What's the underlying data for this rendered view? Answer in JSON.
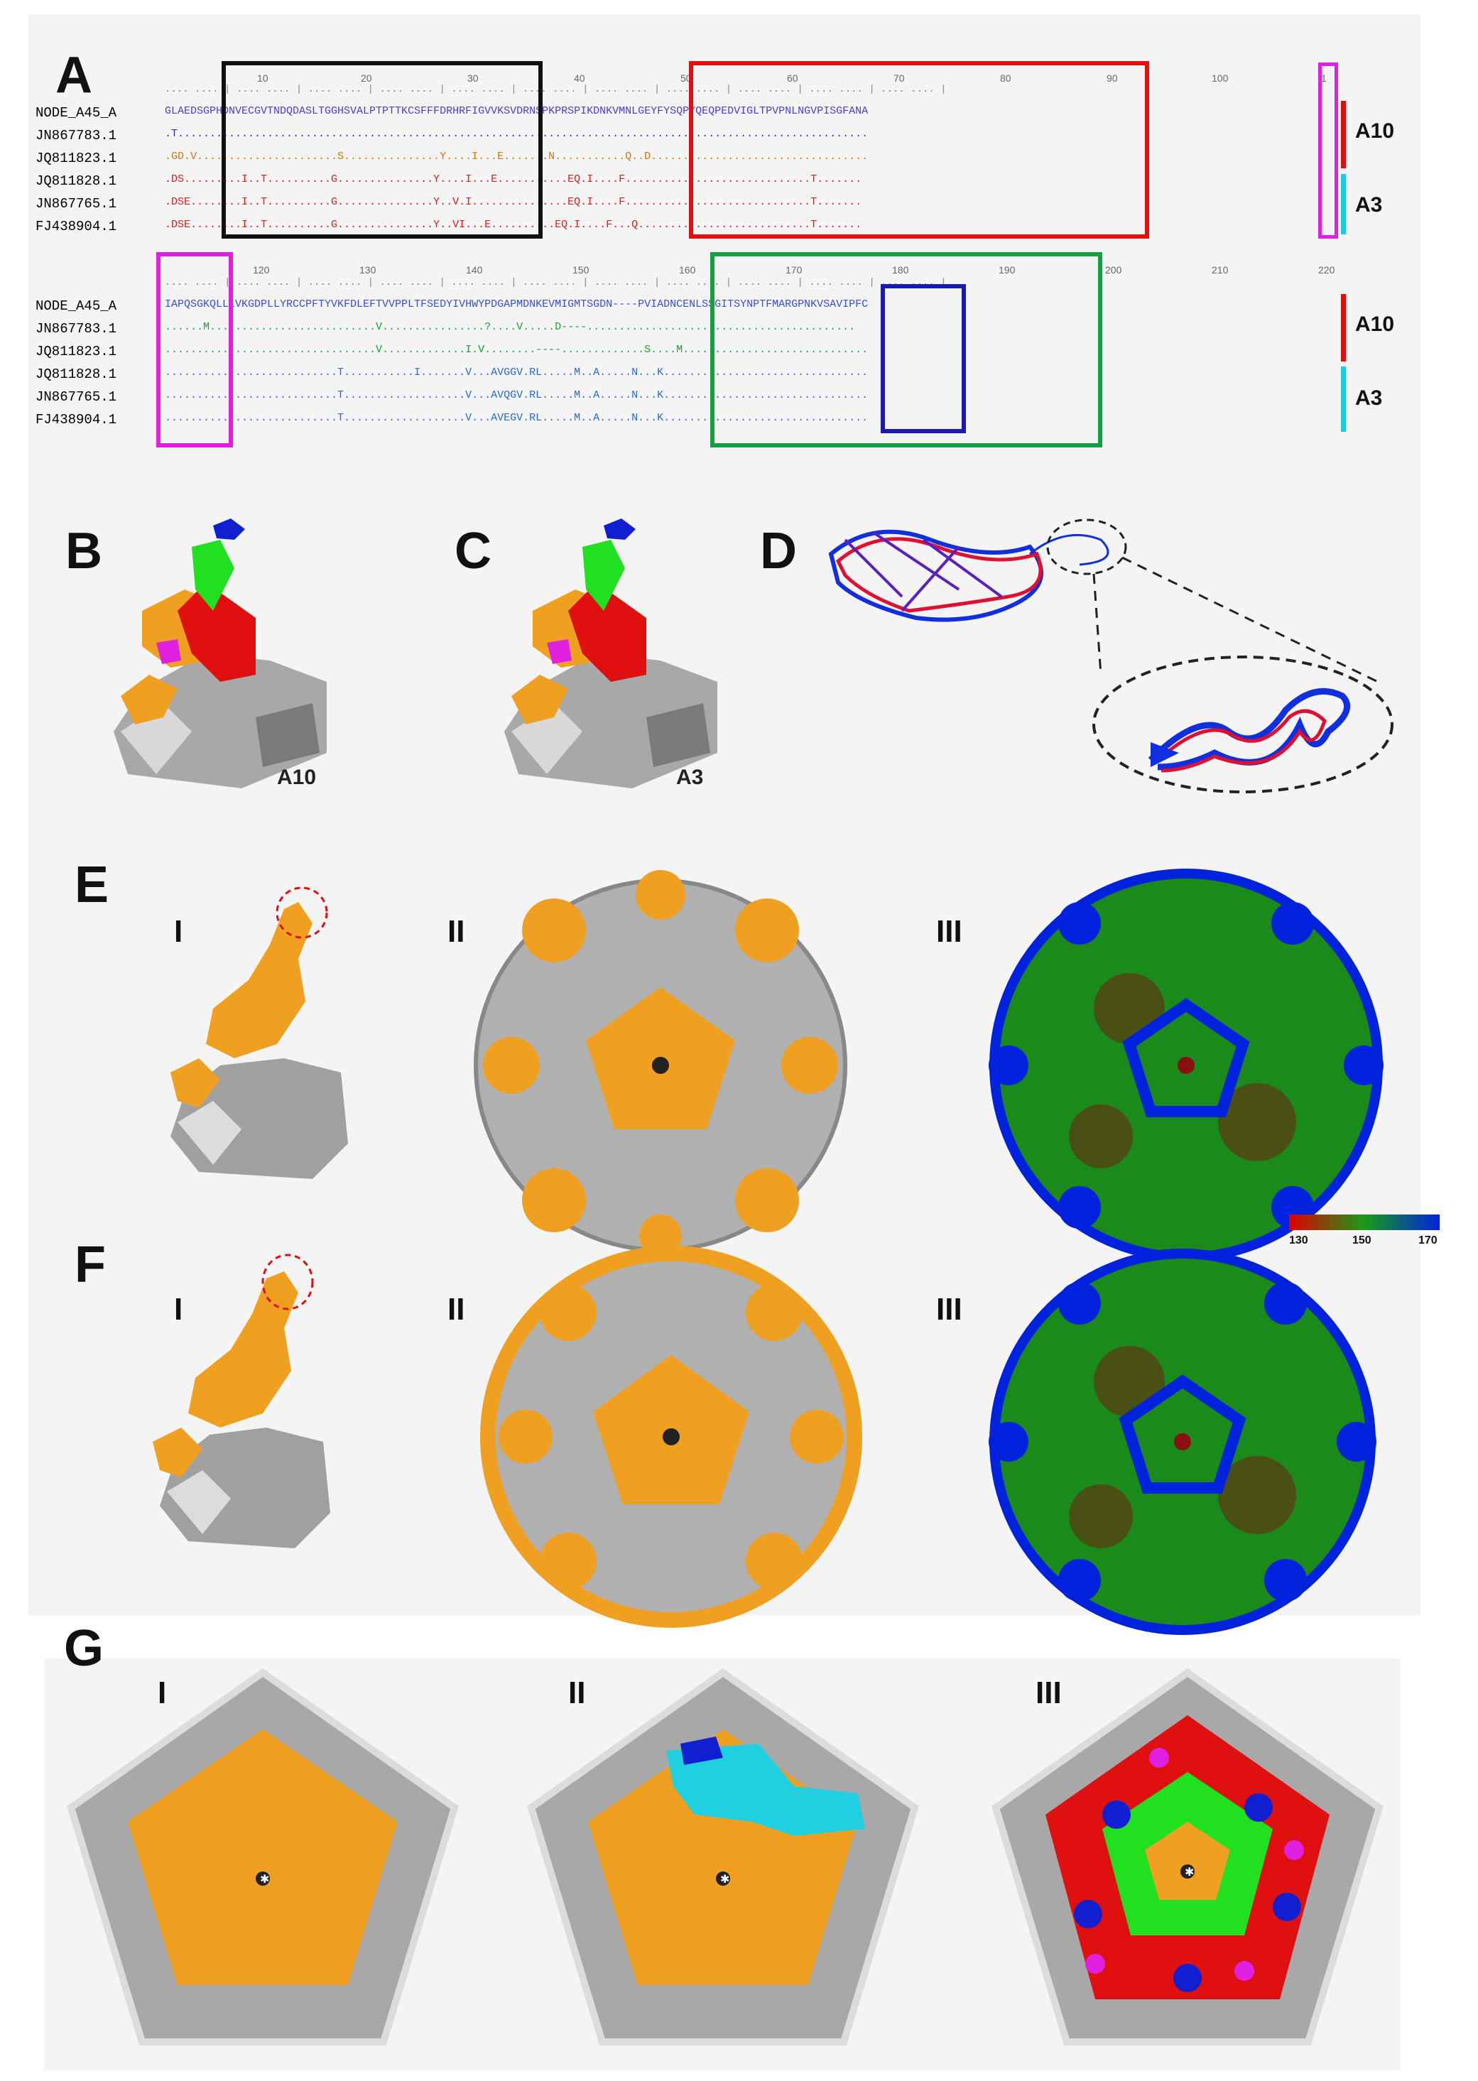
{
  "panels": {
    "A": "A",
    "B": "B",
    "C": "C",
    "D": "D",
    "E": "E",
    "F": "F",
    "G": "G",
    "roman": [
      "I",
      "II",
      "III"
    ]
  },
  "alignment": {
    "block1": {
      "ruler_ticks": [
        "10",
        "20",
        "30",
        "40",
        "50",
        "60",
        "70",
        "80",
        "90",
        "100",
        "1"
      ],
      "names": [
        "NODE_A45_A",
        "JN867783.1",
        "JQ811823.1",
        "JQ811828.1",
        "JN867765.1",
        "FJ438904.1"
      ],
      "seqs": [
        "GLAEDSGPHDNVECGVTNDQDASLTGGHSVALPTPTTKCSFFFDRHRFIGVVKSVDRNSPKPRSPIKDNKVMNLGEYFYSQPYQEQPEDVIGLTPVPNLNGVPISGFANA",
        ".T............................................................................................................",
        ".GD.V......................S...............Y....I...E.......N...........Q..D..................................",
        ".DS.........I..T..........G...............Y....I...E...........EQ.I....F.............................T.......",
        ".DSE........I..T..........G...............Y..V.I...............EQ.I....F.............................T.......",
        ".DSE........I..T..........G...............Y..VI...E..........EQ.I....F...Q...........................T......."
      ],
      "groups": [
        "A10",
        "A3"
      ]
    },
    "block2": {
      "ruler_ticks": [
        "120",
        "130",
        "140",
        "150",
        "160",
        "170",
        "180",
        "190",
        "200",
        "210",
        "220"
      ],
      "names": [
        "NODE_A45_A",
        "JN867783.1",
        "JQ811823.1",
        "JQ811828.1",
        "JN867765.1",
        "FJ438904.1"
      ],
      "seqs": [
        "IAPQSGKQLLLVKGDPLLYRCCPFTYVKFDLEFTVVPPLTFSEDYIVHWYPDGAPMDNKEVMIGMTSGDN----PVIADNCENLSSGITSYNPTFMARGPNKVSAVIPFC",
        "......M..........................V................?....V.....D----..........................................",
        ".................................V.............I.V........----.............S....M.............................",
        "...........................T...........I.......V...AVGGV.RL.....M..A.....N...K................................",
        "...........................T...................V...AVQGV.RL.....M..A.....N...K................................",
        "...........................T...................V...AVEGV.RL.....M..A.....N...K................................"
      ],
      "groups": [
        "A10",
        "A3"
      ]
    }
  },
  "structure_labels": {
    "B": "A10",
    "C": "A3"
  },
  "colorbar": {
    "ticks": [
      "130",
      "150",
      "170"
    ],
    "colors": [
      "#e00000",
      "#1a9a1a",
      "#0022dd"
    ]
  },
  "colors": {
    "orange": "#f0a020",
    "grey": "#9a9a9a",
    "red": "#e01010",
    "green": "#20e020",
    "blue": "#1020d0",
    "magenta": "#e020e0",
    "cyan": "#20d0e0",
    "box_black": "#111111",
    "box_red": "#e01010",
    "box_green": "#14a040",
    "box_blue": "#1a1ab0",
    "box_magenta": "#e020e0"
  }
}
